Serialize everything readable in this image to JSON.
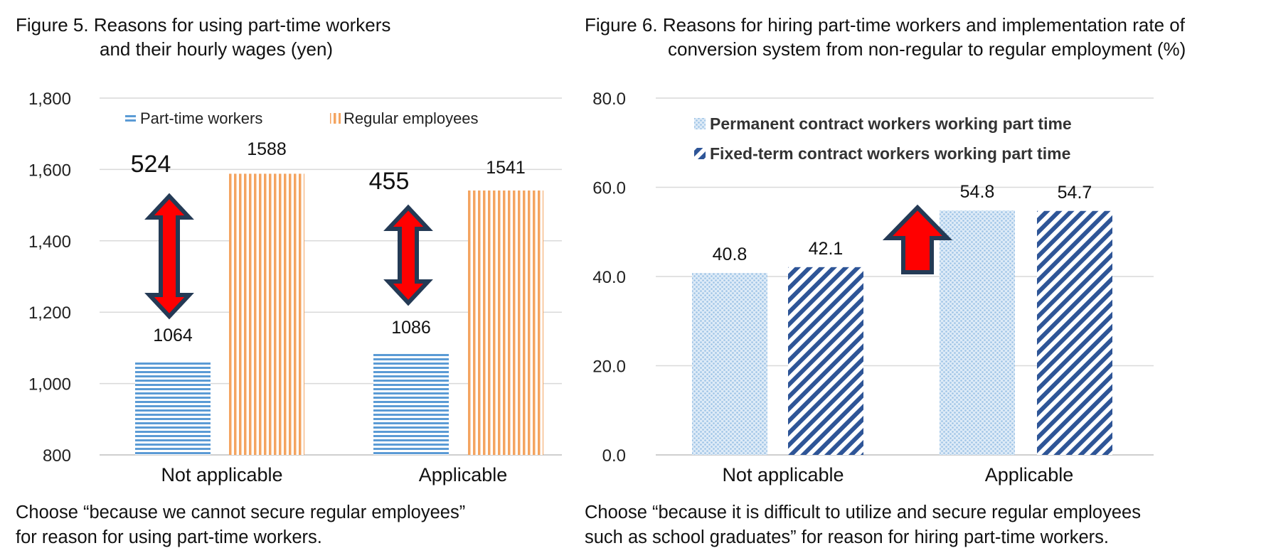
{
  "chart_data": [
    {
      "type": "bar",
      "title_line1": "Figure 5. Reasons for using part-time workers",
      "title_line2": "and their hourly wages (yen)",
      "categories": [
        "Not applicable",
        "Applicable"
      ],
      "series": [
        {
          "name": "Part-time workers",
          "values": [
            1064,
            1086
          ],
          "color": "#5b9bd5"
        },
        {
          "name": "Regular employees",
          "values": [
            1588,
            1541
          ],
          "color": "#f4a460"
        }
      ],
      "differences": [
        524,
        455
      ],
      "y_ticks": [
        "800",
        "1,000",
        "1,200",
        "1,400",
        "1,600",
        "1,800"
      ],
      "ylim": [
        800,
        1800
      ],
      "grid": true,
      "legend_position": "top",
      "note_line1": "Choose “because we cannot secure regular employees”",
      "note_line2": "for reason for using part-time workers."
    },
    {
      "type": "bar",
      "title_line1": "Figure 6. Reasons for hiring part-time workers and implementation rate of",
      "title_line2": "conversion system from non-regular to regular employment (%)",
      "categories": [
        "Not applicable",
        "Applicable"
      ],
      "series": [
        {
          "name": "Permanent contract workers working part time",
          "values": [
            40.8,
            54.8
          ],
          "color": "#bdd7ee"
        },
        {
          "name": "Fixed-term contract workers working part time",
          "values": [
            42.1,
            54.7
          ],
          "color": "#2e5597"
        }
      ],
      "y_ticks": [
        "0.0",
        "20.0",
        "40.0",
        "60.0",
        "80.0"
      ],
      "ylim": [
        0,
        80
      ],
      "grid": true,
      "legend_position": "top",
      "note_line1": "Choose “because it is difficult to utilize and secure regular employees",
      "note_line2": "such as school graduates” for reason for hiring part-time workers."
    }
  ],
  "colors": {
    "arrow_fill": "#ff0000",
    "arrow_stroke": "#243a55"
  }
}
